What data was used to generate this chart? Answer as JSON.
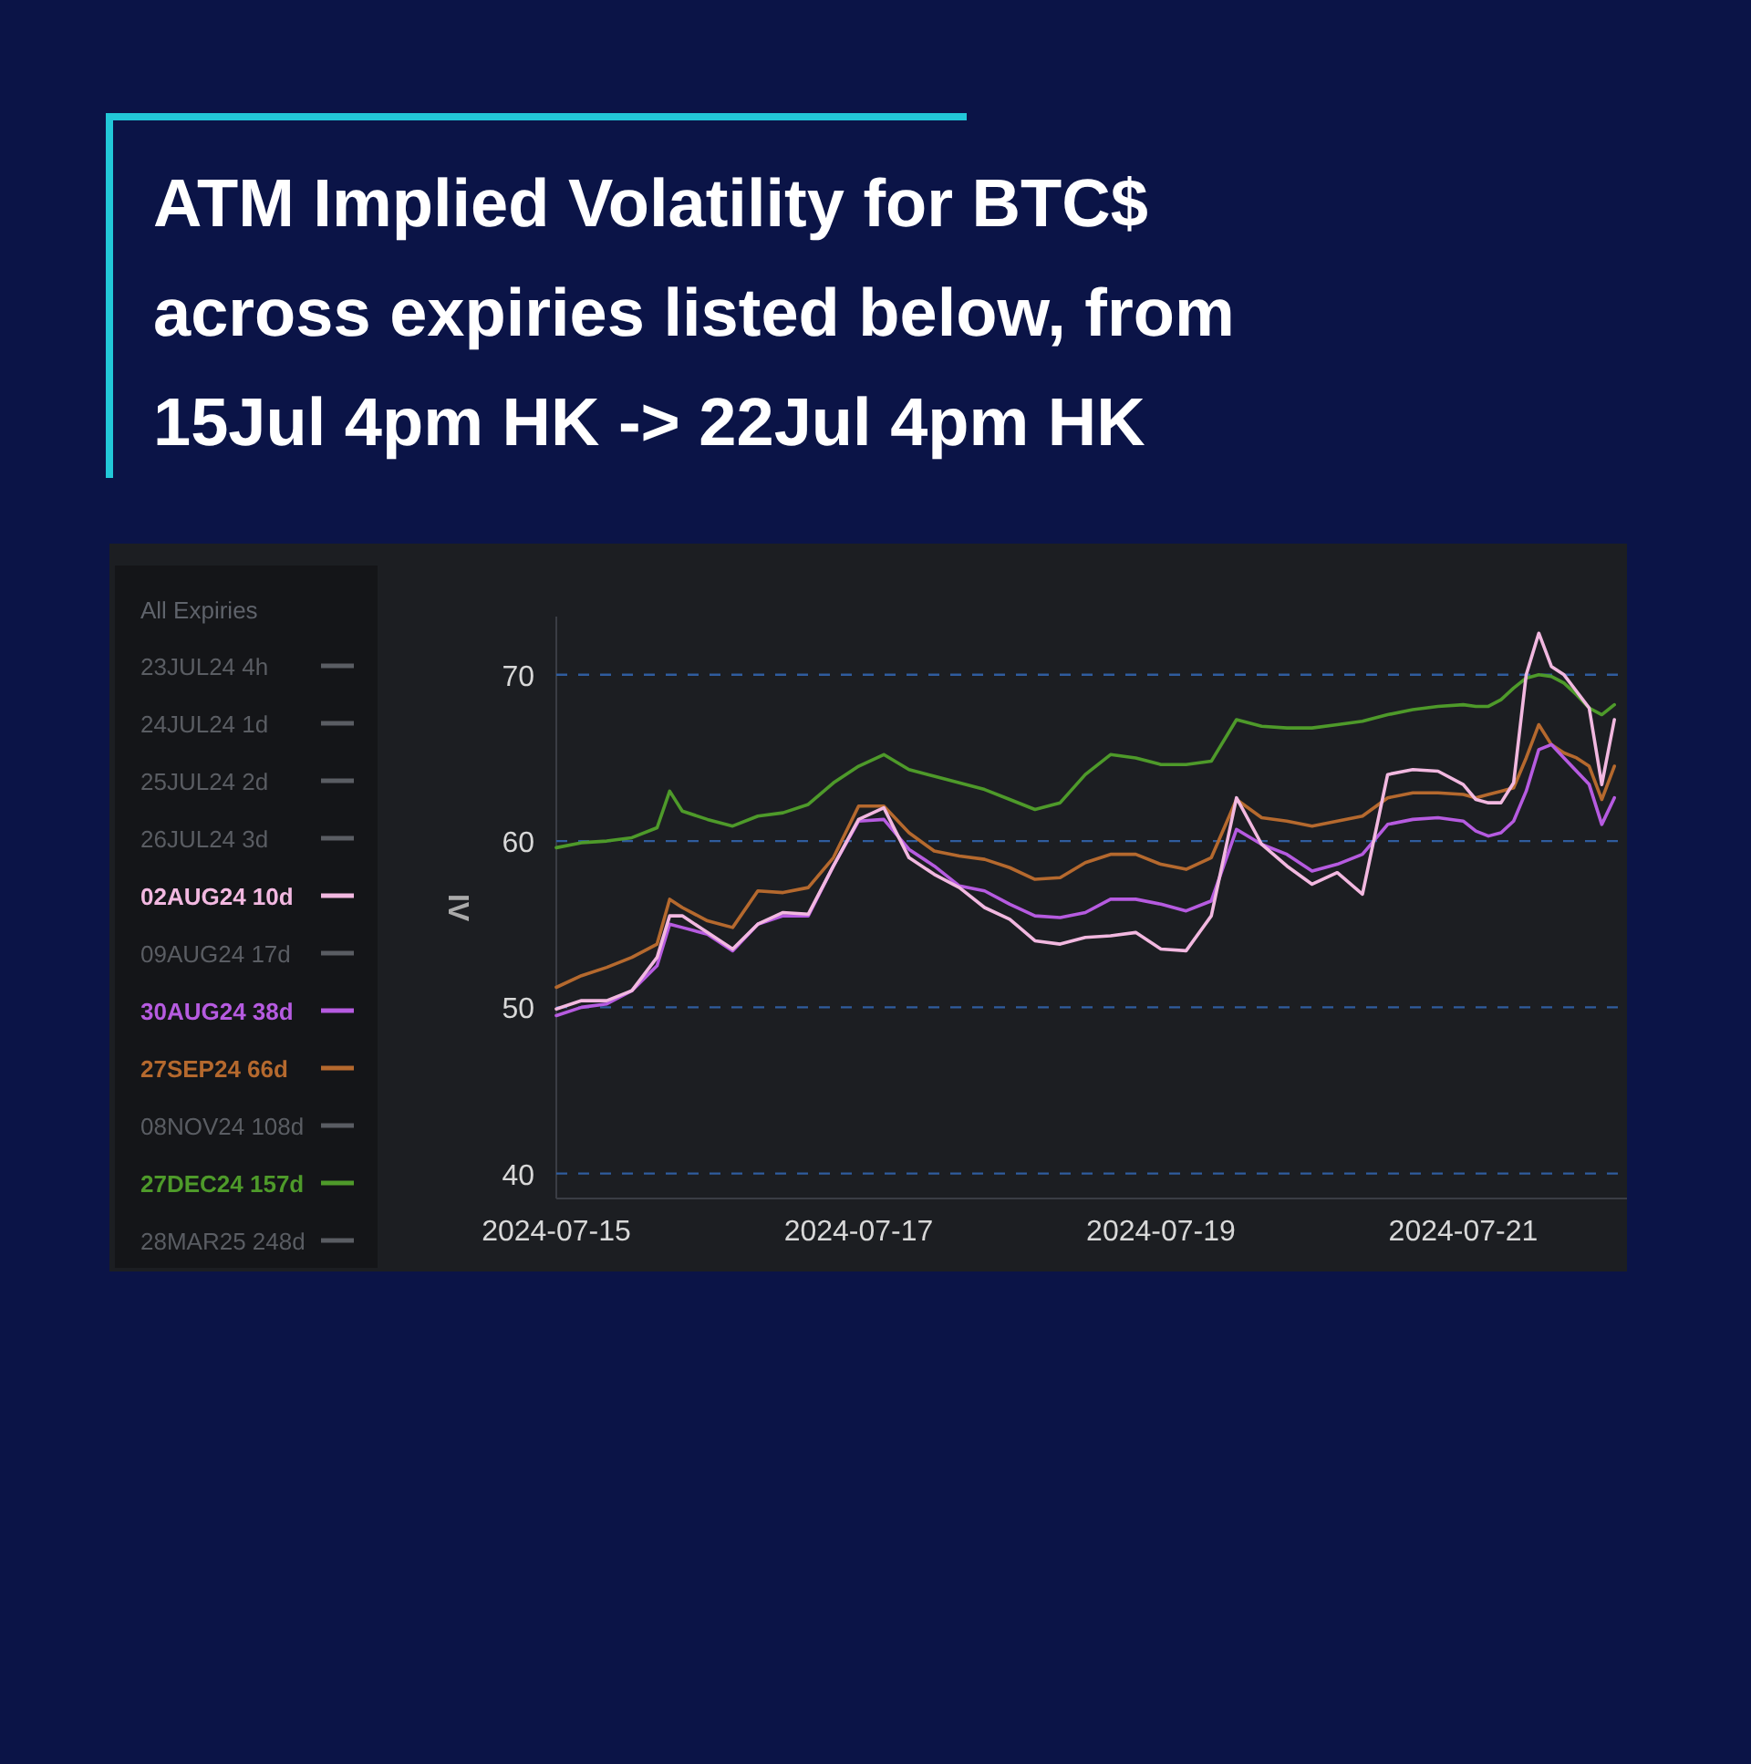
{
  "chart_data": {
    "type": "line",
    "title": "ATM Implied Volatility for BTC$ across expiries listed below, from 15Jul 4pm HK -> 22Jul 4pm HK",
    "ylabel": "IV",
    "legend_title": "All Expiries",
    "legend": "left",
    "grid": "y",
    "line_style": "solid",
    "marker": "none",
    "x": [
      "2024-07-15T00:00",
      "2024-07-15T04:00",
      "2024-07-15T08:00",
      "2024-07-15T12:00",
      "2024-07-15T16:00",
      "2024-07-15T18:00",
      "2024-07-15T20:00",
      "2024-07-16T00:00",
      "2024-07-16T04:00",
      "2024-07-16T08:00",
      "2024-07-16T12:00",
      "2024-07-16T16:00",
      "2024-07-16T20:00",
      "2024-07-17T00:00",
      "2024-07-17T04:00",
      "2024-07-17T08:00",
      "2024-07-17T12:00",
      "2024-07-17T16:00",
      "2024-07-17T20:00",
      "2024-07-18T00:00",
      "2024-07-18T04:00",
      "2024-07-18T08:00",
      "2024-07-18T12:00",
      "2024-07-18T16:00",
      "2024-07-18T20:00",
      "2024-07-19T00:00",
      "2024-07-19T04:00",
      "2024-07-19T08:00",
      "2024-07-19T12:00",
      "2024-07-19T16:00",
      "2024-07-19T20:00",
      "2024-07-20T00:00",
      "2024-07-20T04:00",
      "2024-07-20T08:00",
      "2024-07-20T12:00",
      "2024-07-20T16:00",
      "2024-07-20T20:00",
      "2024-07-21T00:00",
      "2024-07-21T02:00",
      "2024-07-21T04:00",
      "2024-07-21T06:00",
      "2024-07-21T08:00",
      "2024-07-21T10:00",
      "2024-07-21T12:00",
      "2024-07-21T14:00",
      "2024-07-21T16:00",
      "2024-07-21T18:00",
      "2024-07-21T20:00",
      "2024-07-21T22:00",
      "2024-07-22T00:00"
    ],
    "xlim": [
      "2024-07-15T00:00",
      "2024-07-22T02:00"
    ],
    "xticks": [
      "2024-07-15",
      "2024-07-17",
      "2024-07-19",
      "2024-07-21"
    ],
    "ylim": [
      38.5,
      73.5
    ],
    "yticks": [
      40,
      50,
      60,
      70
    ],
    "series": [
      {
        "name": "23JUL24 4h",
        "color": "#5a5d63",
        "values": [
          null,
          null,
          null,
          null,
          null,
          null,
          null,
          null,
          null,
          null,
          null,
          null,
          null,
          null,
          null,
          null,
          null,
          null,
          null,
          null,
          null,
          null,
          null,
          null,
          null,
          null,
          null,
          null,
          null,
          null,
          null,
          null,
          null,
          null,
          null,
          null,
          null,
          null,
          null,
          null,
          null,
          null,
          null,
          null,
          null,
          null,
          null,
          null,
          null,
          null
        ]
      },
      {
        "name": "24JUL24 1d",
        "color": "#5a5d63",
        "values": [
          null,
          null,
          null,
          null,
          null,
          null,
          null,
          null,
          null,
          null,
          null,
          null,
          null,
          null,
          null,
          null,
          null,
          null,
          null,
          null,
          null,
          null,
          null,
          null,
          null,
          null,
          null,
          null,
          null,
          null,
          null,
          null,
          null,
          null,
          null,
          null,
          null,
          null,
          null,
          null,
          null,
          null,
          null,
          null,
          null,
          null,
          null,
          null,
          null,
          null
        ]
      },
      {
        "name": "25JUL24 2d",
        "color": "#5a5d63",
        "values": [
          null,
          null,
          null,
          null,
          null,
          null,
          null,
          null,
          null,
          null,
          null,
          null,
          null,
          null,
          null,
          null,
          null,
          null,
          null,
          null,
          null,
          null,
          null,
          null,
          null,
          null,
          null,
          null,
          null,
          null,
          null,
          null,
          null,
          null,
          null,
          null,
          null,
          null,
          null,
          null,
          null,
          null,
          null,
          null,
          null,
          null,
          null,
          null,
          null,
          null
        ]
      },
      {
        "name": "26JUL24 3d",
        "color": "#5a5d63",
        "values": [
          null,
          null,
          null,
          null,
          null,
          null,
          null,
          null,
          null,
          null,
          null,
          null,
          null,
          null,
          null,
          null,
          null,
          null,
          null,
          null,
          null,
          null,
          null,
          null,
          null,
          null,
          null,
          null,
          null,
          null,
          null,
          null,
          null,
          null,
          null,
          null,
          null,
          null,
          null,
          null,
          null,
          null,
          null,
          null,
          null,
          null,
          null,
          null,
          null,
          null
        ]
      },
      {
        "name": "02AUG24 10d",
        "color": "#f2b8e0",
        "values": [
          49.9,
          50.4,
          50.4,
          51.0,
          53.0,
          55.5,
          55.5,
          54.5,
          53.5,
          55.0,
          55.7,
          55.6,
          58.5,
          61.3,
          62.0,
          59.0,
          58.0,
          57.2,
          56.0,
          55.3,
          54.0,
          53.8,
          54.2,
          54.3,
          54.5,
          53.5,
          53.4,
          55.5,
          62.6,
          59.8,
          58.5,
          57.4,
          58.1,
          56.8,
          64.0,
          64.3,
          64.2,
          63.4,
          62.5,
          62.3,
          62.3,
          63.5,
          70.0,
          72.5,
          70.5,
          70.0,
          69.0,
          68.0,
          63.4,
          67.3
        ]
      },
      {
        "name": "09AUG24 17d",
        "color": "#5a5d63",
        "values": [
          null,
          null,
          null,
          null,
          null,
          null,
          null,
          null,
          null,
          null,
          null,
          null,
          null,
          null,
          null,
          null,
          null,
          null,
          null,
          null,
          null,
          null,
          null,
          null,
          null,
          null,
          null,
          null,
          null,
          null,
          null,
          null,
          null,
          null,
          null,
          null,
          null,
          null,
          null,
          null,
          null,
          null,
          null,
          null,
          null,
          null,
          null,
          null,
          null,
          null
        ]
      },
      {
        "name": "30AUG24 38d",
        "color": "#b65be0",
        "values": [
          49.5,
          50.0,
          50.2,
          51.0,
          52.5,
          55.0,
          54.8,
          54.4,
          53.4,
          55.0,
          55.5,
          55.5,
          58.5,
          61.2,
          61.3,
          59.5,
          58.5,
          57.3,
          57.0,
          56.2,
          55.5,
          55.4,
          55.7,
          56.5,
          56.5,
          56.2,
          55.8,
          56.4,
          60.7,
          59.8,
          59.2,
          58.2,
          58.6,
          59.2,
          61.0,
          61.3,
          61.4,
          61.2,
          60.6,
          60.3,
          60.5,
          61.2,
          63.0,
          65.5,
          65.8,
          65.0,
          64.2,
          63.4,
          61.0,
          62.6
        ]
      },
      {
        "name": "27SEP24 66d",
        "color": "#b5692e",
        "values": [
          51.2,
          51.9,
          52.4,
          53.0,
          53.8,
          56.5,
          56.0,
          55.2,
          54.8,
          57.0,
          56.9,
          57.2,
          59.0,
          62.1,
          62.1,
          60.5,
          59.4,
          59.1,
          58.9,
          58.4,
          57.7,
          57.8,
          58.7,
          59.2,
          59.2,
          58.6,
          58.3,
          59.0,
          62.5,
          61.4,
          61.2,
          60.9,
          61.2,
          61.5,
          62.6,
          62.9,
          62.9,
          62.8,
          62.6,
          62.8,
          63.0,
          63.2,
          65.0,
          67.0,
          65.8,
          65.3,
          65.0,
          64.5,
          62.5,
          64.5
        ]
      },
      {
        "name": "08NOV24 108d",
        "color": "#5a5d63",
        "values": [
          null,
          null,
          null,
          null,
          null,
          null,
          null,
          null,
          null,
          null,
          null,
          null,
          null,
          null,
          null,
          null,
          null,
          null,
          null,
          null,
          null,
          null,
          null,
          null,
          null,
          null,
          null,
          null,
          null,
          null,
          null,
          null,
          null,
          null,
          null,
          null,
          null,
          null,
          null,
          null,
          null,
          null,
          null,
          null,
          null,
          null,
          null,
          null,
          null,
          null
        ]
      },
      {
        "name": "27DEC24 157d",
        "color": "#4e9a2a",
        "values": [
          59.6,
          59.9,
          60.0,
          60.2,
          60.8,
          63.0,
          61.8,
          61.3,
          60.9,
          61.5,
          61.7,
          62.2,
          63.5,
          64.5,
          65.2,
          64.3,
          63.9,
          63.5,
          63.1,
          62.5,
          61.9,
          62.3,
          64.0,
          65.2,
          65.0,
          64.6,
          64.6,
          64.8,
          67.3,
          66.9,
          66.8,
          66.8,
          67.0,
          67.2,
          67.6,
          67.9,
          68.1,
          68.2,
          68.1,
          68.1,
          68.5,
          69.2,
          69.8,
          70.0,
          69.9,
          69.5,
          68.8,
          68.0,
          67.6,
          68.2
        ]
      },
      {
        "name": "28MAR25 248d",
        "color": "#5a5d63",
        "values": [
          null,
          null,
          null,
          null,
          null,
          null,
          null,
          null,
          null,
          null,
          null,
          null,
          null,
          null,
          null,
          null,
          null,
          null,
          null,
          null,
          null,
          null,
          null,
          null,
          null,
          null,
          null,
          null,
          null,
          null,
          null,
          null,
          null,
          null,
          null,
          null,
          null,
          null,
          null,
          null,
          null,
          null,
          null,
          null,
          null,
          null,
          null,
          null,
          null,
          null
        ]
      }
    ]
  }
}
